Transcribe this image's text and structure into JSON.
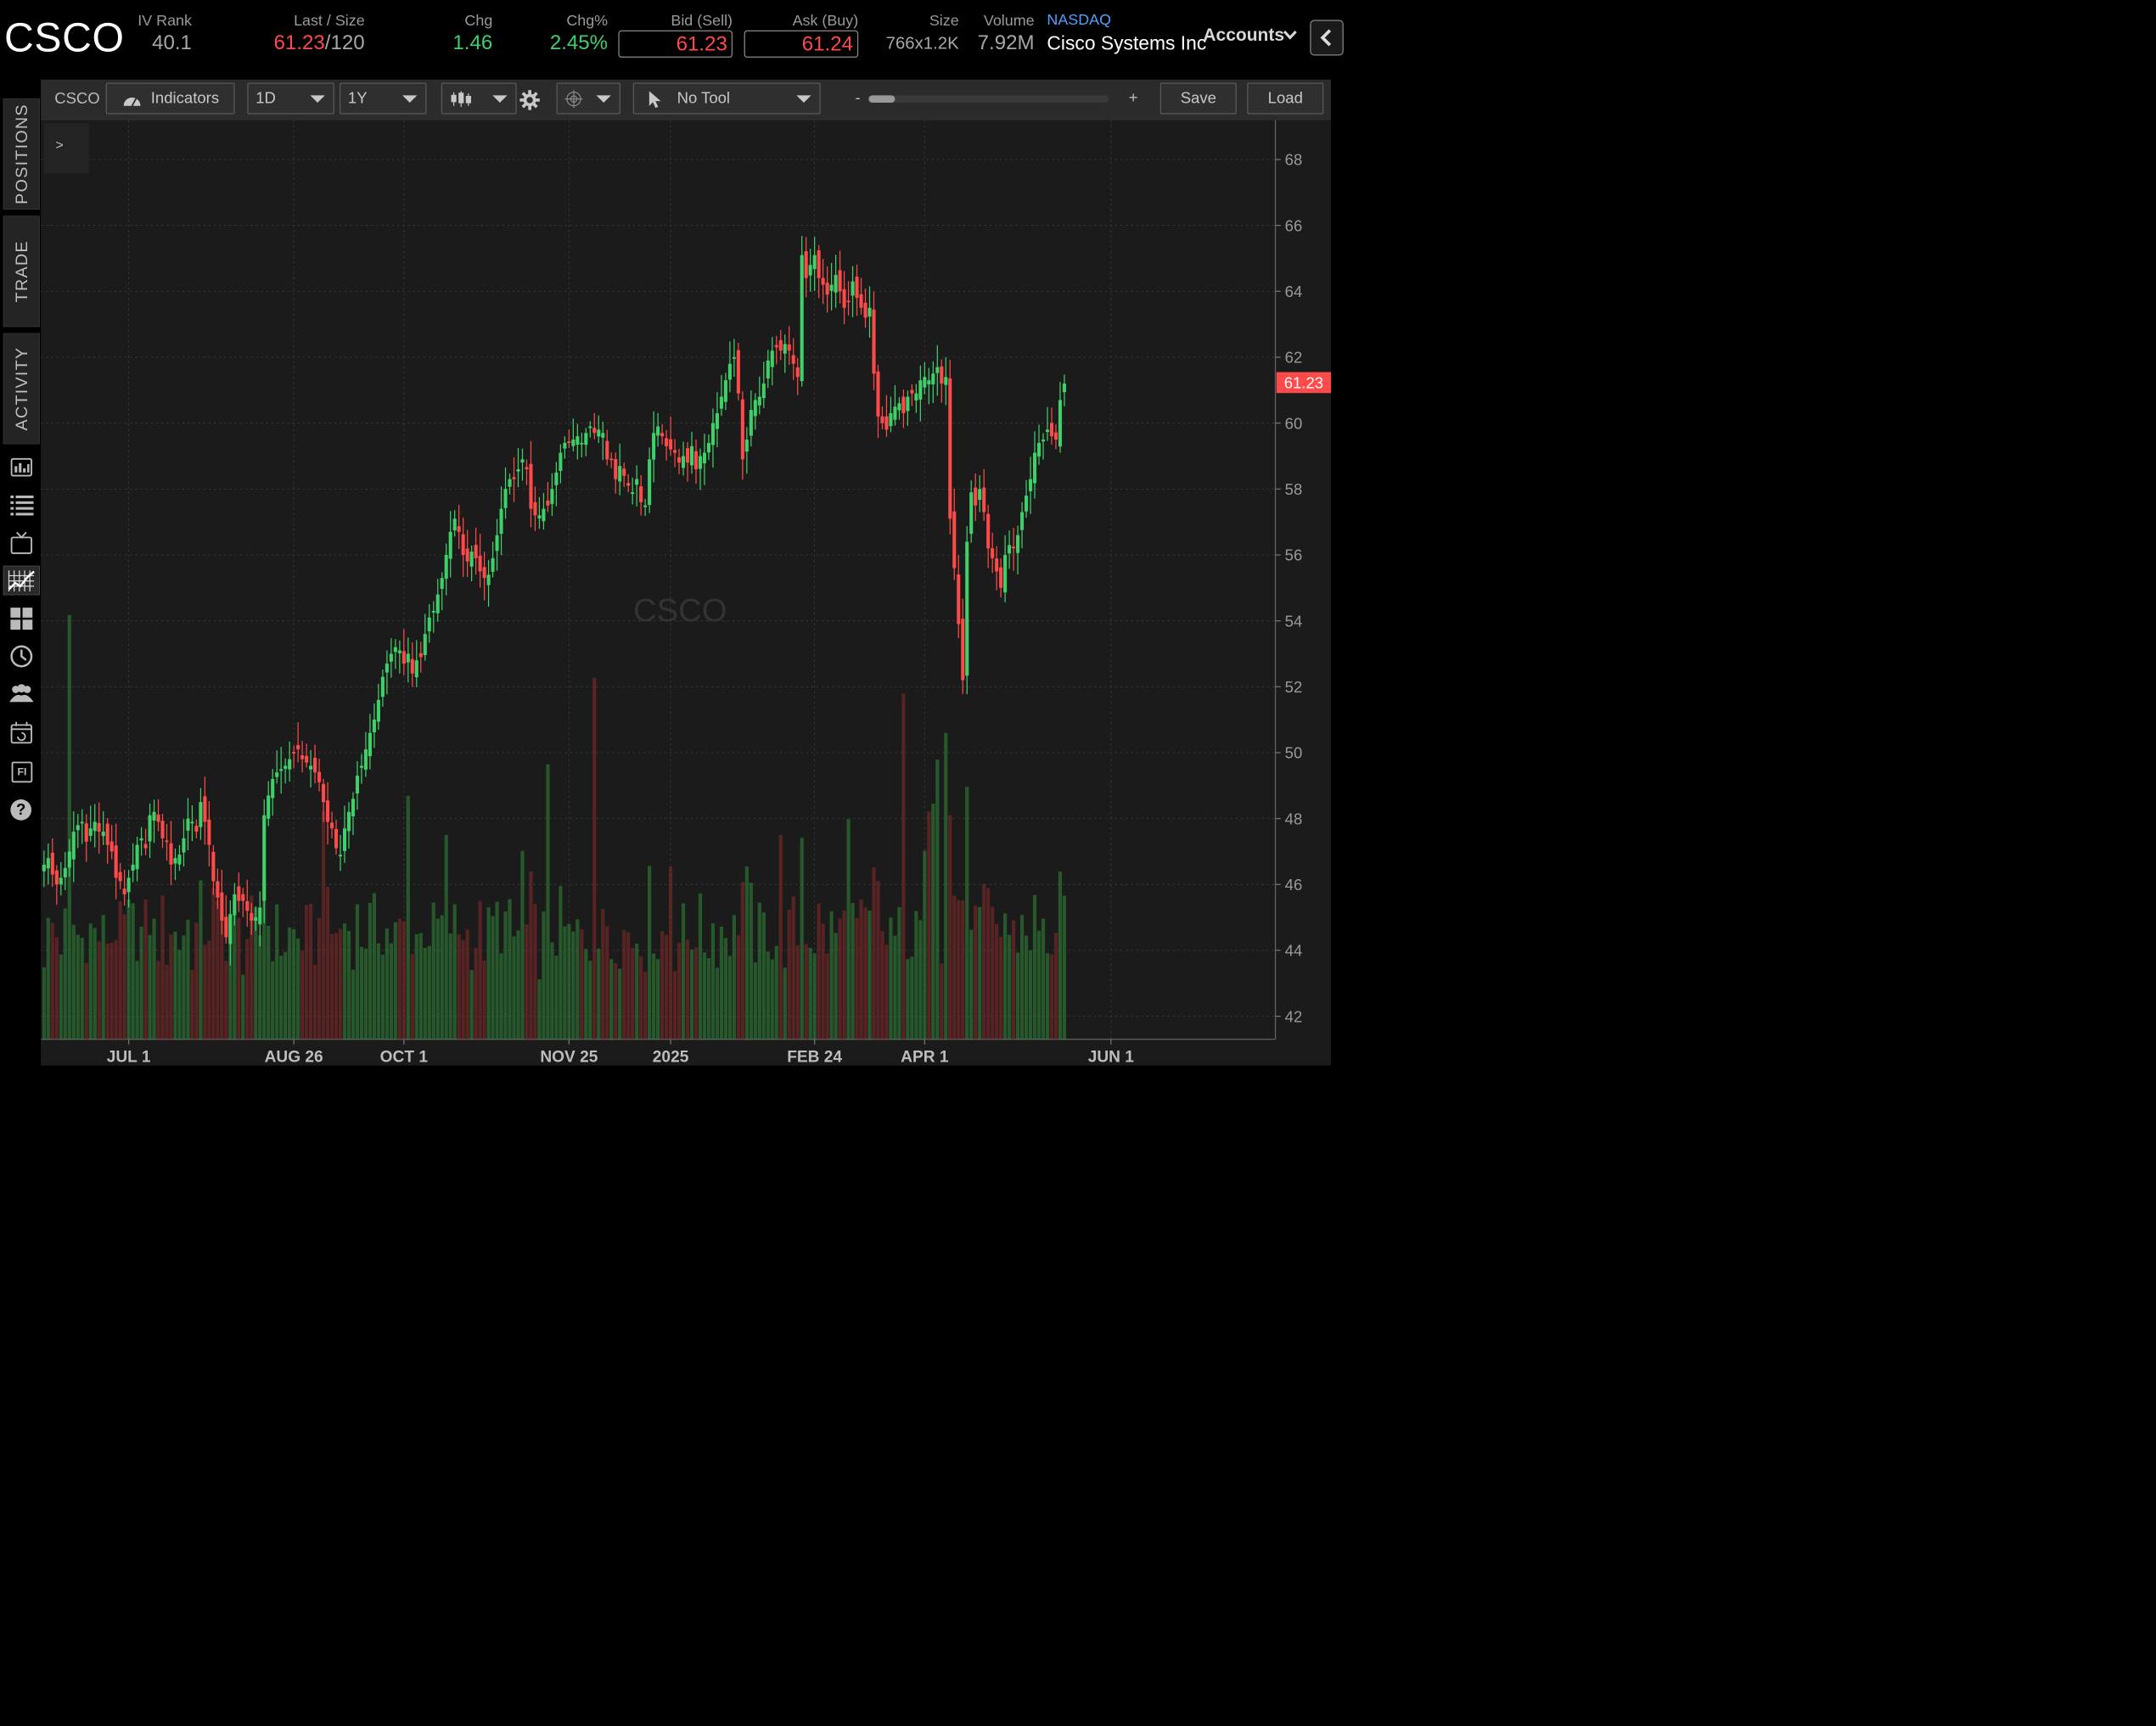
{
  "header": {
    "symbol": "CSCO",
    "iv_rank": {
      "label": "IV Rank",
      "value": "40.1"
    },
    "last_size": {
      "label": "Last / Size",
      "last": "61.23",
      "sep": "/",
      "size": "120"
    },
    "chg": {
      "label": "Chg",
      "value": "1.46"
    },
    "chg_pct": {
      "label": "Chg%",
      "value": "2.45%"
    },
    "bid": {
      "label": "Bid (Sell)",
      "value": "61.23"
    },
    "ask": {
      "label": "Ask (Buy)",
      "value": "61.24"
    },
    "size": {
      "label": "Size",
      "value": "766x1.2K"
    },
    "volume": {
      "label": "Volume",
      "value": "7.92M"
    },
    "exchange": "NASDAQ",
    "company": "Cisco Systems Inc",
    "accounts_label": "Accounts"
  },
  "sidebar": {
    "tabs": [
      "POSITIONS",
      "TRADE",
      "ACTIVITY"
    ],
    "icons": [
      "monitor-icon",
      "list-icon",
      "tv-icon",
      "charts-icon",
      "grid-icon",
      "analyze-icon",
      "community-icon",
      "calendar-icon",
      "fixed-income-icon",
      "help-icon"
    ],
    "fi_text": "FI",
    "help_text": "?"
  },
  "toolbar": {
    "symbol": "CSCO",
    "indicators_label": "Indicators",
    "interval": "1D",
    "range": "1Y",
    "tool_label": "No Tool",
    "zoom_minus": "-",
    "zoom_plus": "+",
    "save_label": "Save",
    "load_label": "Load",
    "collapse_label": ">"
  },
  "colors": {
    "up": "#3fd06a",
    "down": "#ff4a4a",
    "background": "#1b1b1b",
    "grid": "#3a3a3a"
  },
  "chart_data": {
    "type": "candlestick",
    "watermark": "CSCO",
    "y_ticks": [
      "68",
      "66",
      "64",
      "62",
      "60",
      "58",
      "56",
      "54",
      "52",
      "50",
      "48",
      "46",
      "44",
      "42"
    ],
    "ylim": [
      41.3,
      69.2
    ],
    "x_ticks": [
      {
        "label": "JUL 1",
        "index": 20
      },
      {
        "label": "AUG 26",
        "index": 59
      },
      {
        "label": "OCT 1",
        "index": 85
      },
      {
        "label": "NOV 25",
        "index": 124
      },
      {
        "label": "2025",
        "index": 148
      },
      {
        "label": "FEB 24",
        "index": 182
      },
      {
        "label": "APR 1",
        "index": 208
      },
      {
        "label": "JUN 1",
        "index": 252
      }
    ],
    "last_price_label": "61.23",
    "last_price": 61.23,
    "close_series": [
      46.6,
      46.8,
      46.3,
      46.0,
      46.2,
      46.5,
      47.0,
      47.6,
      47.8,
      47.9,
      47.3,
      47.7,
      47.9,
      47.6,
      47.6,
      47.2,
      47.0,
      46.2,
      46.1,
      45.7,
      46.2,
      46.6,
      47.2,
      47.4,
      47.1,
      48.1,
      48.2,
      47.9,
      47.4,
      47.3,
      46.6,
      46.8,
      46.9,
      47.4,
      48.0,
      47.9,
      47.6,
      48.5,
      47.9,
      47.2,
      46.1,
      45.6,
      44.9,
      44.4,
      45.1,
      45.7,
      45.5,
      45.5,
      45.2,
      44.9,
      45.0,
      45.3,
      48.1,
      48.7,
      49.2,
      49.4,
      49.5,
      49.6,
      49.8,
      50.0,
      50.1,
      49.8,
      49.7,
      49.6,
      49.4,
      49.1,
      48.5,
      47.9,
      47.7,
      47.1,
      46.9,
      47.7,
      48.2,
      48.6,
      49.3,
      49.6,
      50.1,
      50.6,
      51.0,
      51.6,
      52.3,
      52.7,
      53.0,
      53.2,
      53.1,
      52.7,
      53.0,
      52.4,
      52.8,
      52.9,
      53.6,
      54.1,
      54.3,
      54.8,
      55.3,
      56.0,
      56.7,
      57.1,
      56.7,
      56.0,
      55.8,
      56.1,
      55.9,
      55.5,
      55.3,
      55.4,
      55.9,
      56.6,
      57.4,
      58.0,
      58.3,
      58.3,
      58.6,
      58.9,
      58.6,
      57.4,
      57.2,
      57.2,
      57.4,
      57.5,
      58.0,
      58.5,
      59.1,
      59.4,
      59.4,
      59.5,
      59.6,
      59.4,
      59.7,
      59.9,
      59.7,
      59.8,
      59.7,
      58.9,
      58.9,
      58.3,
      58.7,
      58.4,
      58.1,
      57.9,
      58.3,
      57.6,
      57.5,
      58.9,
      59.7,
      59.9,
      59.6,
      59.3,
      59.2,
      59.1,
      58.8,
      59.0,
      58.8,
      59.3,
      58.6,
      59.0,
      59.1,
      59.4,
      60.0,
      60.3,
      60.8,
      61.3,
      61.8,
      62.0,
      60.9,
      58.9,
      59.5,
      60.4,
      60.7,
      60.8,
      61.2,
      61.9,
      62.2,
      62.3,
      62.2,
      62.4,
      62.2,
      61.8,
      61.4,
      65.1,
      64.4,
      64.8,
      65.1,
      64.4,
      64.2,
      63.9,
      64.2,
      64.5,
      64.0,
      63.5,
      63.7,
      64.3,
      63.8,
      63.5,
      63.2,
      63.5,
      61.5,
      60.2,
      60.0,
      59.8,
      60.3,
      60.5,
      60.6,
      60.3,
      60.8,
      60.9,
      60.9,
      61.3,
      61.4,
      61.3,
      61.5,
      61.7,
      61.2,
      61.4,
      57.1,
      55.6,
      53.9,
      52.2,
      56.4,
      57.9,
      57.5,
      58.0,
      57.3,
      56.2,
      55.9,
      55.5,
      55.0,
      56.0,
      56.3,
      56.2,
      56.6,
      57.3,
      57.8,
      58.3,
      59.1,
      59.4,
      59.5,
      59.8,
      59.6,
      59.5,
      60.7,
      61.2
    ]
  }
}
